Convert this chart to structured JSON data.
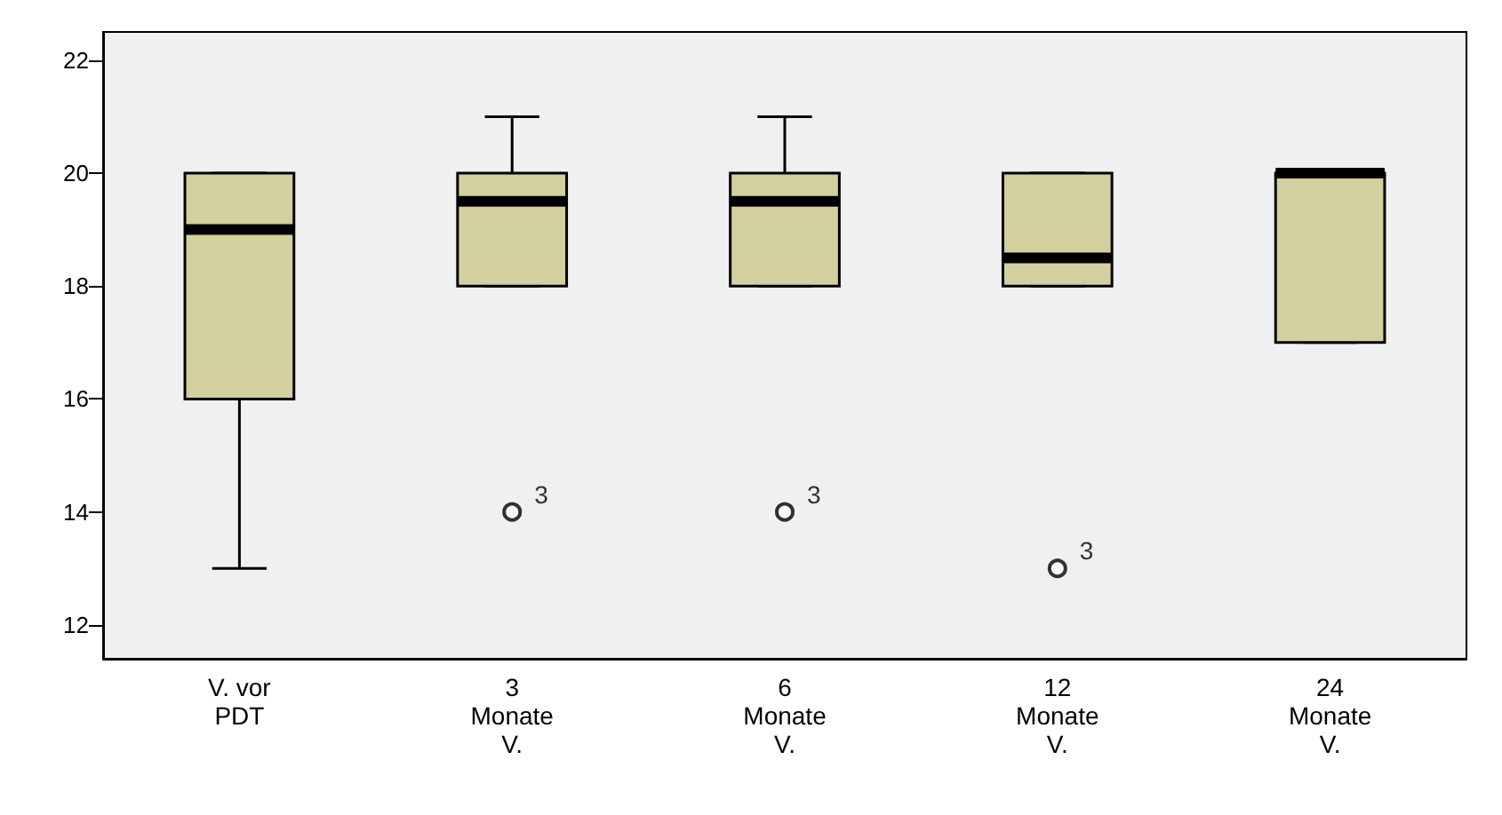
{
  "chart_data": {
    "type": "box",
    "categories": [
      "V. vor\nPDT",
      "3\nMonate\nV.",
      "6\nMonate\nV.",
      "12\nMonate\nV.",
      "24\nMonate\nV."
    ],
    "series": [
      {
        "color": "#d4cf9e",
        "boxes": [
          {
            "low": 13,
            "q1": 16,
            "median": 19,
            "q3": 20,
            "high": 20
          },
          {
            "low": 18,
            "q1": 18,
            "median": 19.5,
            "q3": 20,
            "high": 21,
            "outliers": [
              14
            ]
          },
          {
            "low": 18,
            "q1": 18,
            "median": 19.5,
            "q3": 20,
            "high": 21,
            "outliers": [
              14
            ]
          },
          {
            "low": 18,
            "q1": 18,
            "median": 18.5,
            "q3": 20,
            "high": 20,
            "outliers": [
              13
            ]
          },
          {
            "low": 17,
            "q1": 17,
            "median": 20,
            "q3": 20,
            "high": 20
          }
        ]
      }
    ],
    "ylim": [
      11.4,
      22.5
    ],
    "yticks": [
      12,
      14,
      16,
      18,
      20,
      22
    ],
    "grid": false,
    "annotations": [
      "3",
      "3",
      "3"
    ]
  }
}
